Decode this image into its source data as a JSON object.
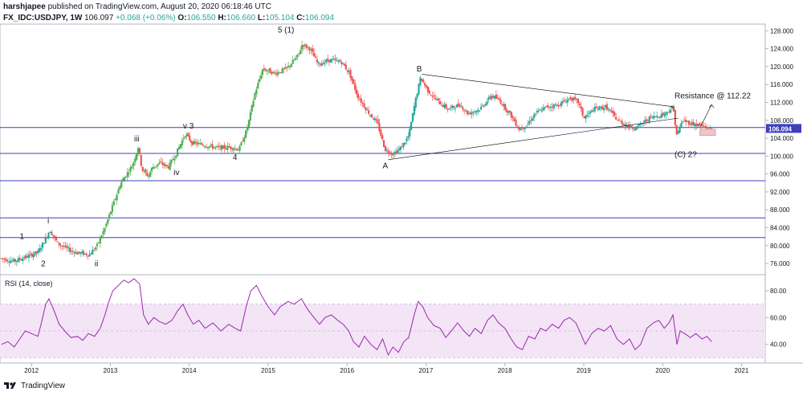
{
  "header": {
    "author": "harshjapee",
    "published_text": "published on TradingView.com, August 20, 2020 06:18:46 UTC"
  },
  "legend": {
    "symbol": "FX_IDC:USDJPY, 1W",
    "last": "106.097",
    "change": "+0.068 (+0.06%)",
    "o_label": "O:",
    "o_value": "106.550",
    "h_label": "H:",
    "h_value": "106.660",
    "l_label": "L:",
    "l_value": "105.104",
    "c_label": "C:",
    "c_value": "106.094"
  },
  "footer": {
    "brand": "TradingView"
  },
  "colors": {
    "up": "#26a69a",
    "up_bright": "#4caf50",
    "down": "#ef5350",
    "hline": "#3f3fbf",
    "rsi_line": "#9c27b0",
    "rsi_band": "#f3e5f5",
    "price_tag": "#3f3fbf"
  },
  "chart_data": [
    {
      "type": "candlestick",
      "title": "FX_IDC:USDJPY, 1W",
      "y_ticks": [
        "76.000",
        "80.000",
        "84.000",
        "88.000",
        "92.000",
        "96.000",
        "100.000",
        "104.000",
        "108.000",
        "112.000",
        "116.000",
        "120.000",
        "124.000",
        "128.000"
      ],
      "ylim": [
        73.5,
        129.5
      ],
      "x_ticks": [
        "2012",
        "2013",
        "2014",
        "2015",
        "2016",
        "2017",
        "2018",
        "2019",
        "2020",
        "2021"
      ],
      "xlim": [
        2011.6,
        2021.3
      ],
      "last_price_tag": "106.094",
      "price_path": [
        [
          2011.62,
          77.2
        ],
        [
          2011.8,
          76.5
        ],
        [
          2011.95,
          77.5
        ],
        [
          2012.1,
          78.5
        ],
        [
          2012.18,
          81.0
        ],
        [
          2012.25,
          83.5
        ],
        [
          2012.35,
          80.5
        ],
        [
          2012.5,
          79.0
        ],
        [
          2012.6,
          78.4
        ],
        [
          2012.75,
          78.0
        ],
        [
          2012.85,
          80.0
        ],
        [
          2012.95,
          84.0
        ],
        [
          2013.05,
          89.0
        ],
        [
          2013.15,
          94.0
        ],
        [
          2013.3,
          98.0
        ],
        [
          2013.37,
          102.0
        ],
        [
          2013.42,
          97.0
        ],
        [
          2013.5,
          95.5
        ],
        [
          2013.55,
          97.5
        ],
        [
          2013.65,
          98.5
        ],
        [
          2013.75,
          97.5
        ],
        [
          2013.85,
          100.5
        ],
        [
          2013.97,
          105.0
        ],
        [
          2014.05,
          103.0
        ],
        [
          2014.2,
          102.5
        ],
        [
          2014.4,
          101.8
        ],
        [
          2014.55,
          102.0
        ],
        [
          2014.65,
          101.5
        ],
        [
          2014.75,
          106.0
        ],
        [
          2014.85,
          114.0
        ],
        [
          2014.95,
          119.5
        ],
        [
          2015.1,
          118.5
        ],
        [
          2015.25,
          119.5
        ],
        [
          2015.4,
          122.5
        ],
        [
          2015.45,
          125.0
        ],
        [
          2015.55,
          124.0
        ],
        [
          2015.65,
          120.5
        ],
        [
          2015.8,
          121.5
        ],
        [
          2015.95,
          121.0
        ],
        [
          2016.05,
          118.5
        ],
        [
          2016.15,
          113.5
        ],
        [
          2016.3,
          109.5
        ],
        [
          2016.4,
          107.5
        ],
        [
          2016.5,
          101.5
        ],
        [
          2016.6,
          100.5
        ],
        [
          2016.7,
          101.8
        ],
        [
          2016.8,
          104.5
        ],
        [
          2016.88,
          112.0
        ],
        [
          2016.95,
          117.5
        ],
        [
          2017.05,
          114.5
        ],
        [
          2017.15,
          112.5
        ],
        [
          2017.3,
          110.5
        ],
        [
          2017.45,
          111.5
        ],
        [
          2017.55,
          109.5
        ],
        [
          2017.7,
          110.5
        ],
        [
          2017.85,
          113.5
        ],
        [
          2017.95,
          112.5
        ],
        [
          2018.1,
          109.0
        ],
        [
          2018.2,
          106.0
        ],
        [
          2018.3,
          107.0
        ],
        [
          2018.4,
          109.5
        ],
        [
          2018.55,
          111.0
        ],
        [
          2018.7,
          111.5
        ],
        [
          2018.85,
          113.0
        ],
        [
          2018.95,
          112.0
        ],
        [
          2019.02,
          108.5
        ],
        [
          2019.15,
          110.5
        ],
        [
          2019.3,
          111.0
        ],
        [
          2019.45,
          108.0
        ],
        [
          2019.6,
          106.5
        ],
        [
          2019.7,
          106.5
        ],
        [
          2019.85,
          108.5
        ],
        [
          2019.95,
          109.0
        ],
        [
          2020.05,
          109.5
        ],
        [
          2020.15,
          111.0
        ],
        [
          2020.2,
          104.5
        ],
        [
          2020.27,
          108.0
        ],
        [
          2020.35,
          107.5
        ],
        [
          2020.45,
          107.0
        ],
        [
          2020.55,
          106.5
        ],
        [
          2020.62,
          106.1
        ]
      ]
    },
    {
      "type": "line",
      "title": "RSI (14, close)",
      "y_ticks": [
        "40.00",
        "60.00",
        "80.00"
      ],
      "ylim": [
        26,
        92
      ],
      "band": [
        30,
        70
      ],
      "series": [
        {
          "name": "RSI (14, close)",
          "points": [
            [
              2011.62,
              40
            ],
            [
              2011.7,
              42
            ],
            [
              2011.78,
              38
            ],
            [
              2011.85,
              44
            ],
            [
              2011.92,
              50
            ],
            [
              2012.0,
              48
            ],
            [
              2012.08,
              46
            ],
            [
              2012.12,
              55
            ],
            [
              2012.18,
              70
            ],
            [
              2012.22,
              74
            ],
            [
              2012.28,
              66
            ],
            [
              2012.35,
              55
            ],
            [
              2012.42,
              50
            ],
            [
              2012.5,
              45
            ],
            [
              2012.58,
              46
            ],
            [
              2012.65,
              43
            ],
            [
              2012.72,
              48
            ],
            [
              2012.8,
              46
            ],
            [
              2012.87,
              52
            ],
            [
              2012.93,
              62
            ],
            [
              2012.98,
              72
            ],
            [
              2013.03,
              80
            ],
            [
              2013.1,
              84
            ],
            [
              2013.17,
              88
            ],
            [
              2013.23,
              86
            ],
            [
              2013.3,
              89
            ],
            [
              2013.37,
              85
            ],
            [
              2013.42,
              62
            ],
            [
              2013.48,
              55
            ],
            [
              2013.55,
              60
            ],
            [
              2013.62,
              57
            ],
            [
              2013.7,
              55
            ],
            [
              2013.78,
              58
            ],
            [
              2013.85,
              65
            ],
            [
              2013.92,
              70
            ],
            [
              2013.98,
              62
            ],
            [
              2014.05,
              55
            ],
            [
              2014.12,
              58
            ],
            [
              2014.2,
              52
            ],
            [
              2014.3,
              56
            ],
            [
              2014.4,
              50
            ],
            [
              2014.5,
              55
            ],
            [
              2014.58,
              52
            ],
            [
              2014.65,
              50
            ],
            [
              2014.72,
              68
            ],
            [
              2014.78,
              80
            ],
            [
              2014.85,
              84
            ],
            [
              2014.92,
              76
            ],
            [
              2015.0,
              68
            ],
            [
              2015.08,
              62
            ],
            [
              2015.15,
              68
            ],
            [
              2015.25,
              72
            ],
            [
              2015.33,
              70
            ],
            [
              2015.42,
              74
            ],
            [
              2015.5,
              66
            ],
            [
              2015.58,
              60
            ],
            [
              2015.65,
              55
            ],
            [
              2015.72,
              60
            ],
            [
              2015.8,
              62
            ],
            [
              2015.88,
              58
            ],
            [
              2015.95,
              55
            ],
            [
              2016.02,
              50
            ],
            [
              2016.08,
              42
            ],
            [
              2016.15,
              38
            ],
            [
              2016.22,
              46
            ],
            [
              2016.3,
              40
            ],
            [
              2016.38,
              36
            ],
            [
              2016.45,
              44
            ],
            [
              2016.52,
              32
            ],
            [
              2016.58,
              38
            ],
            [
              2016.65,
              34
            ],
            [
              2016.72,
              42
            ],
            [
              2016.78,
              45
            ],
            [
              2016.85,
              62
            ],
            [
              2016.9,
              72
            ],
            [
              2016.96,
              68
            ],
            [
              2017.02,
              60
            ],
            [
              2017.1,
              54
            ],
            [
              2017.18,
              52
            ],
            [
              2017.25,
              45
            ],
            [
              2017.32,
              50
            ],
            [
              2017.4,
              56
            ],
            [
              2017.48,
              50
            ],
            [
              2017.55,
              46
            ],
            [
              2017.62,
              52
            ],
            [
              2017.7,
              48
            ],
            [
              2017.78,
              58
            ],
            [
              2017.85,
              62
            ],
            [
              2017.92,
              56
            ],
            [
              2018.0,
              52
            ],
            [
              2018.08,
              44
            ],
            [
              2018.15,
              38
            ],
            [
              2018.22,
              36
            ],
            [
              2018.3,
              46
            ],
            [
              2018.38,
              44
            ],
            [
              2018.45,
              52
            ],
            [
              2018.52,
              50
            ],
            [
              2018.6,
              55
            ],
            [
              2018.68,
              52
            ],
            [
              2018.75,
              58
            ],
            [
              2018.82,
              60
            ],
            [
              2018.9,
              56
            ],
            [
              2018.96,
              48
            ],
            [
              2019.02,
              40
            ],
            [
              2019.1,
              48
            ],
            [
              2019.18,
              52
            ],
            [
              2019.26,
              50
            ],
            [
              2019.34,
              54
            ],
            [
              2019.42,
              44
            ],
            [
              2019.5,
              40
            ],
            [
              2019.58,
              44
            ],
            [
              2019.65,
              36
            ],
            [
              2019.72,
              40
            ],
            [
              2019.8,
              52
            ],
            [
              2019.88,
              56
            ],
            [
              2019.95,
              58
            ],
            [
              2020.02,
              52
            ],
            [
              2020.08,
              56
            ],
            [
              2020.13,
              62
            ],
            [
              2020.18,
              40
            ],
            [
              2020.22,
              50
            ],
            [
              2020.28,
              48
            ],
            [
              2020.35,
              45
            ],
            [
              2020.42,
              48
            ],
            [
              2020.5,
              44
            ],
            [
              2020.56,
              46
            ],
            [
              2020.62,
              42
            ]
          ]
        }
      ]
    }
  ],
  "annotations": {
    "w1": "1",
    "w2": "2",
    "wi": "i",
    "wii": "ii",
    "wiii": "iii",
    "wiv": "iv",
    "wv3": "v 3",
    "w4": "4",
    "w51": "5 (1)",
    "wA": "A",
    "wB": "B",
    "wC2": "(C) 2?",
    "resistance": "Resistance @ 112.22"
  }
}
